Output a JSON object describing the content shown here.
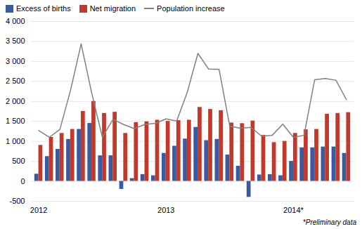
{
  "chart_data": {
    "type": "bar",
    "categories": [
      "2012",
      null,
      null,
      null,
      null,
      null,
      null,
      null,
      null,
      null,
      null,
      null,
      "2013",
      null,
      null,
      null,
      null,
      null,
      null,
      null,
      null,
      null,
      null,
      null,
      "2014*",
      null,
      null,
      null,
      null,
      null
    ],
    "series": [
      {
        "name": "Excess of births",
        "type": "bar",
        "color": "#3a5ba0",
        "values": [
          180,
          620,
          800,
          1050,
          1300,
          1450,
          640,
          640,
          -200,
          70,
          170,
          140,
          700,
          880,
          1060,
          1350,
          1020,
          1050,
          660,
          380,
          -400,
          160,
          170,
          140,
          500,
          840,
          840,
          860,
          860,
          700
        ]
      },
      {
        "name": "Net migration",
        "type": "bar",
        "color": "#c0392b",
        "values": [
          900,
          1100,
          1200,
          1300,
          1750,
          2000,
          1700,
          1730,
          1200,
          1470,
          1490,
          1530,
          1500,
          1520,
          1530,
          1850,
          1800,
          1770,
          1460,
          1445,
          1510,
          1150,
          970,
          1000,
          1200,
          1290,
          1300,
          1680,
          1700,
          1720
        ]
      },
      {
        "name": "Population increase",
        "type": "line",
        "color": "#808080",
        "values": [
          1270,
          1100,
          1300,
          2280,
          3440,
          2200,
          1100,
          1550,
          1420,
          1320,
          1420,
          1450,
          1560,
          1510,
          2230,
          3200,
          2810,
          2800,
          1380,
          1330,
          1350,
          1130,
          1150,
          1430,
          1100,
          1150,
          2540,
          2570,
          2530,
          2040
        ]
      }
    ],
    "ylim": [
      -500,
      4000
    ],
    "yticks": [
      -500,
      0,
      500,
      {
        "value": 1000,
        "label": "1 000"
      },
      {
        "value": 1500,
        "label": "1 500"
      },
      {
        "value": 2000,
        "label": "2 000"
      },
      {
        "value": 2500,
        "label": "2 500"
      },
      {
        "value": 3000,
        "label": "3 000"
      },
      {
        "value": 3500,
        "label": "3 500"
      },
      {
        "value": 4000,
        "label": "4 000"
      }
    ],
    "grid": true,
    "legend": "upper left",
    "annotations": [
      "*Preliminary data"
    ]
  }
}
